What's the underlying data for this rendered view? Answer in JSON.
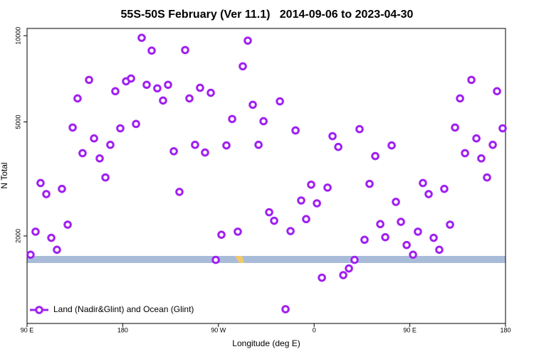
{
  "chart_data": {
    "type": "scatter",
    "title": "55S-50S February (Ver 11.1)   2014-09-06 to 2023-04-30",
    "x_label": "Longitude (deg E)",
    "y_label": "N Total",
    "y_log_scale": true,
    "legend": "bottom-left",
    "xlim": [
      90,
      540
    ],
    "xticks": [
      {
        "value": 90,
        "label": "90 E"
      },
      {
        "value": 180,
        "label": "180"
      },
      {
        "value": 270,
        "label": "90 W"
      },
      {
        "value": 360,
        "label": "0"
      },
      {
        "value": 450,
        "label": "90 E"
      },
      {
        "value": 540,
        "label": "180"
      }
    ],
    "ylim": [
      990,
      10600
    ],
    "yticks": [
      2000,
      5000,
      10000
    ],
    "series": [
      {
        "name": "Land (Nadir&Glint) and Ocean (Glint)",
        "color": "#a020f0",
        "x": [
          93.3,
          98,
          102.7,
          108.1,
          112.8,
          118.1,
          122.8,
          128.2,
          132.9,
          137.5,
          142.2,
          148.3,
          153,
          158.3,
          163.7,
          168.3,
          173,
          177.7,
          183.1,
          187.8,
          192.5,
          197.8,
          202.5,
          207.2,
          212.5,
          217.9,
          222.6,
          228,
          233.3,
          238.7,
          242.7,
          248,
          252.7,
          257.4,
          262.8,
          267.5,
          272.8,
          277.5,
          282.9,
          288.2,
          292.9,
          297.6,
          302.3,
          307.7,
          312.4,
          317.7,
          322.4,
          327.8,
          333.1,
          337.8,
          342.5,
          347.8,
          352.5,
          357.2,
          362.6,
          367.3,
          372.6,
          377.3,
          382.7,
          387.4,
          392.7,
          398,
          402.7,
          407.4,
          412.1,
          417.5,
          422.2,
          426.9,
          432.9,
          436.9,
          441.6,
          447,
          453,
          457.6,
          462.3,
          467.7,
          472.4,
          477.7,
          482.4,
          487.8,
          492.5,
          497.2,
          501.9,
          507.9,
          512.6,
          517.2,
          522.6,
          528,
          532,
          537.3
        ],
        "values": [
          1720,
          2070,
          3060,
          2800,
          1970,
          1790,
          2920,
          2190,
          4780,
          6040,
          3890,
          7010,
          4380,
          3730,
          3200,
          4160,
          6400,
          4750,
          6930,
          7090,
          4920,
          9830,
          6740,
          8870,
          6550,
          5940,
          6740,
          3950,
          2850,
          8910,
          6040,
          4160,
          6580,
          3910,
          6320,
          1650,
          2020,
          4140,
          5120,
          2070,
          7820,
          9610,
          5740,
          4160,
          5030,
          2420,
          2260,
          5900,
          1110,
          2080,
          4670,
          2660,
          2290,
          3020,
          2600,
          1430,
          2950,
          4460,
          4090,
          1460,
          1540,
          1650,
          4720,
          1940,
          3040,
          3800,
          2200,
          1980,
          4140,
          2630,
          2240,
          1860,
          1720,
          2070,
          3060,
          2800,
          1970,
          1790,
          2920,
          2190,
          4780,
          6040,
          3890,
          7010,
          4380,
          3730,
          3200,
          4160,
          6400,
          4750
        ]
      }
    ]
  }
}
